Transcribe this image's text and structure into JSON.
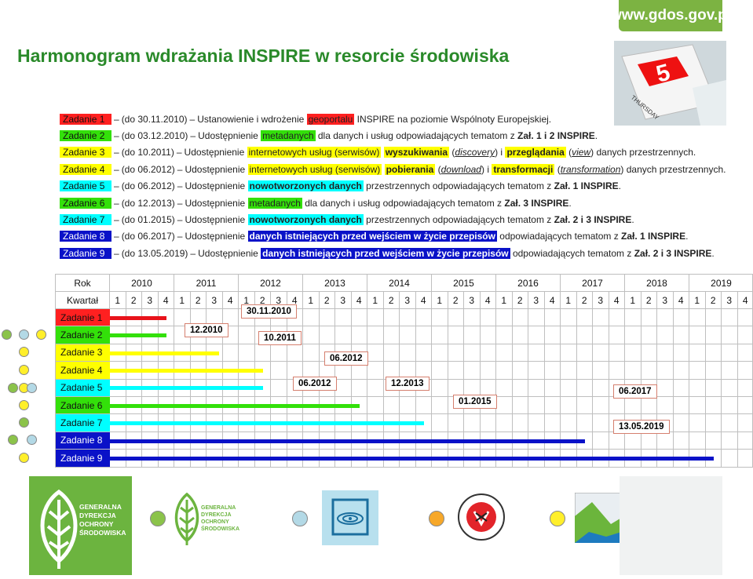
{
  "header": {
    "title": "Harmonogram wdrażania INSPIRE w resorcie środowiska",
    "site": "www.gdos.gov.pl",
    "calendar_day": "5",
    "calendar_weekday": "THURSDAY"
  },
  "colors": {
    "red": "#e8121a",
    "green": "#33e00a",
    "yellow": "#ffff00",
    "cyan": "#00ffff",
    "blue": "#0a12c8",
    "title_green": "#2a8a2a"
  },
  "tasks": [
    {
      "label": "Zadanie 1",
      "color": "#ff2020",
      "deadline": "(do 30.11.2010)",
      "dash": "–",
      "text": [
        [
          "Ustanowienie i wdrożenie ",
          ""
        ],
        [
          "geoportalu",
          "hl"
        ],
        [
          " INSPIRE na poziomie Wspólnoty Europejskiej.",
          ""
        ]
      ]
    },
    {
      "label": "Zadanie 2",
      "color": "#33e00a",
      "deadline": "(do 03.12.2010)",
      "dash": "–",
      "text": [
        [
          "Udostępnienie ",
          ""
        ],
        [
          "metadanych",
          "hl"
        ],
        [
          " dla danych i usług odpowiadających tematom z ",
          ""
        ],
        [
          "Zał. 1 i 2 INSPIRE",
          "b"
        ],
        [
          ".",
          ""
        ]
      ]
    },
    {
      "label": "Zadanie 3",
      "color": "#ffff00",
      "deadline": "(do 10.2011)",
      "dash": "–",
      "text": [
        [
          "Udostępnienie ",
          ""
        ],
        [
          "internetowych usług (serwisów)",
          "hl"
        ],
        [
          " ",
          ""
        ],
        [
          "wyszukiwania",
          "hlb"
        ],
        [
          " (",
          ""
        ],
        [
          "discovery",
          "i"
        ],
        [
          ") i ",
          ""
        ],
        [
          "przeglądania",
          "hlb"
        ],
        [
          " (",
          ""
        ],
        [
          "view",
          "i"
        ],
        [
          ") danych przestrzennych.",
          ""
        ]
      ]
    },
    {
      "label": "Zadanie 4",
      "color": "#ffff00",
      "deadline": "(do 06.2012)",
      "dash": "–",
      "text": [
        [
          "Udostępnienie ",
          ""
        ],
        [
          "internetowych usług (serwisów)",
          "hl"
        ],
        [
          " ",
          ""
        ],
        [
          "pobierania",
          "hlb"
        ],
        [
          " (",
          ""
        ],
        [
          "download",
          "i"
        ],
        [
          ") i ",
          ""
        ],
        [
          "transformacji",
          "hlb"
        ],
        [
          " (",
          ""
        ],
        [
          "transformation",
          "i"
        ],
        [
          ") danych przestrzennych.",
          ""
        ]
      ]
    },
    {
      "label": "Zadanie 5",
      "color": "#00ffff",
      "deadline": "(do 06.2012)",
      "dash": "–",
      "text": [
        [
          "Udostępnienie ",
          ""
        ],
        [
          "nowotworzonych danych",
          "hlb"
        ],
        [
          " przestrzennych odpowiadających tematom z ",
          ""
        ],
        [
          "Zał. 1 INSPIRE",
          "b"
        ],
        [
          ".",
          ""
        ]
      ]
    },
    {
      "label": "Zadanie 6",
      "color": "#33e00a",
      "deadline": "(do 12.2013)",
      "dash": "–",
      "text": [
        [
          "Udostępnienie ",
          ""
        ],
        [
          "metadanych",
          "hl"
        ],
        [
          " dla danych i usług odpowiadających tematom z ",
          ""
        ],
        [
          "Zał. 3 INSPIRE",
          "b"
        ],
        [
          ".",
          ""
        ]
      ]
    },
    {
      "label": "Zadanie 7",
      "color": "#00ffff",
      "deadline": "(do 01.2015)",
      "dash": "–",
      "text": [
        [
          "Udostępnienie ",
          ""
        ],
        [
          "nowotworzonych danych",
          "hlb"
        ],
        [
          " przestrzennych odpowiadających tematom z ",
          ""
        ],
        [
          "Zał. 2 i 3 INSPIRE",
          "b"
        ],
        [
          ".",
          ""
        ]
      ]
    },
    {
      "label": "Zadanie 8",
      "color": "#0a12c8",
      "deadline": "(do 06.2017)",
      "dash": "–",
      "text": [
        [
          "Udostępnienie ",
          ""
        ],
        [
          "danych istniejących przed wejściem w życie przepisów",
          "hlb"
        ],
        [
          " odpowiadających tematom z ",
          ""
        ],
        [
          "Zał. 1 INSPIRE",
          "b"
        ],
        [
          ".",
          ""
        ]
      ]
    },
    {
      "label": "Zadanie 9",
      "color": "#0a12c8",
      "deadline": "(do 13.05.2019)",
      "dash": "–",
      "text": [
        [
          "Udostępnienie ",
          ""
        ],
        [
          "danych istniejących przed wejściem w życie przepisów",
          "hlb"
        ],
        [
          " odpowiadających tematom z ",
          ""
        ],
        [
          "Zał. 2 i 3 INSPIRE",
          "b"
        ],
        [
          ".",
          ""
        ]
      ]
    }
  ],
  "gantt": {
    "row_header_year": "Rok",
    "row_header_quarter": "Kwartał",
    "years": [
      "2010",
      "2011",
      "2012",
      "2013",
      "2014",
      "2015",
      "2016",
      "2017",
      "2018",
      "2019"
    ],
    "quarters": [
      "1",
      "2",
      "3",
      "4"
    ],
    "rows": [
      {
        "label": "Zadanie 1",
        "color": "#ff2020",
        "bar_color": "#e8121a",
        "end_quarter_index": 3.5,
        "callout": "30.11.2010"
      },
      {
        "label": "Zadanie 2",
        "color": "#33e00a",
        "bar_color": "#33e00a",
        "end_quarter_index": 3.5,
        "callout": "12.2010"
      },
      {
        "label": "Zadanie 3",
        "color": "#ffff00",
        "bar_color": "#ffff00",
        "end_quarter_index": 6.8,
        "callout": "10.2011"
      },
      {
        "label": "Zadanie 4",
        "color": "#ffff00",
        "bar_color": "#ffff00",
        "end_quarter_index": 9.5,
        "callout": "06.2012"
      },
      {
        "label": "Zadanie 5",
        "color": "#00ffff",
        "bar_color": "#00ffff",
        "end_quarter_index": 9.5,
        "callout": "06.2012"
      },
      {
        "label": "Zadanie 6",
        "color": "#33e00a",
        "bar_color": "#33e00a",
        "end_quarter_index": 15.5,
        "callout": "12.2013"
      },
      {
        "label": "Zadanie 7",
        "color": "#00ffff",
        "bar_color": "#00ffff",
        "end_quarter_index": 19.5,
        "callout": "01.2015"
      },
      {
        "label": "Zadanie 8",
        "color": "#0a12c8",
        "bar_color": "#0a12c8",
        "end_quarter_index": 29.5,
        "callout": "06.2017"
      },
      {
        "label": "Zadanie 9",
        "color": "#0a12c8",
        "bar_color": "#0a12c8",
        "end_quarter_index": 37.5,
        "callout": "13.05.2019"
      }
    ]
  },
  "logos": {
    "gdos_lines": [
      "GENERALNA",
      "DYREKCJA",
      "OCHRONY",
      "ŚRODOWISKA"
    ],
    "gdos_small_lines": [
      "GENERALNA",
      "DYREKCJA",
      "OCHRONY",
      "ŚRODOWISKA"
    ]
  }
}
